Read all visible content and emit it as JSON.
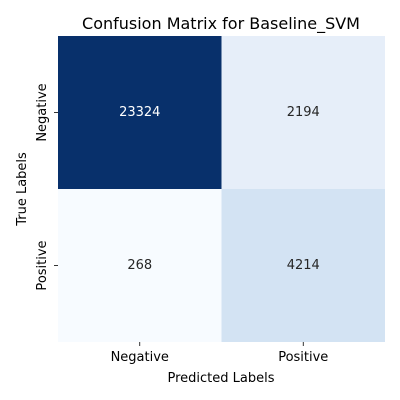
{
  "chart_data": {
    "type": "heatmap",
    "title": "Confusion Matrix for Baseline_SVM",
    "xlabel": "Predicted Labels",
    "ylabel": "True Labels",
    "x_categories": [
      "Negative",
      "Positive"
    ],
    "y_categories": [
      "Negative",
      "Positive"
    ],
    "values": [
      [
        23324,
        2194
      ],
      [
        268,
        4214
      ]
    ],
    "colormap": "Blues",
    "cell_colors": [
      [
        "#08306b",
        "#e6eef9"
      ],
      [
        "#f7fbff",
        "#d3e3f3"
      ]
    ],
    "annotation_colors": [
      [
        "#ffffff",
        "#262626"
      ],
      [
        "#262626",
        "#262626"
      ]
    ],
    "colorbar": false,
    "grid": false
  }
}
